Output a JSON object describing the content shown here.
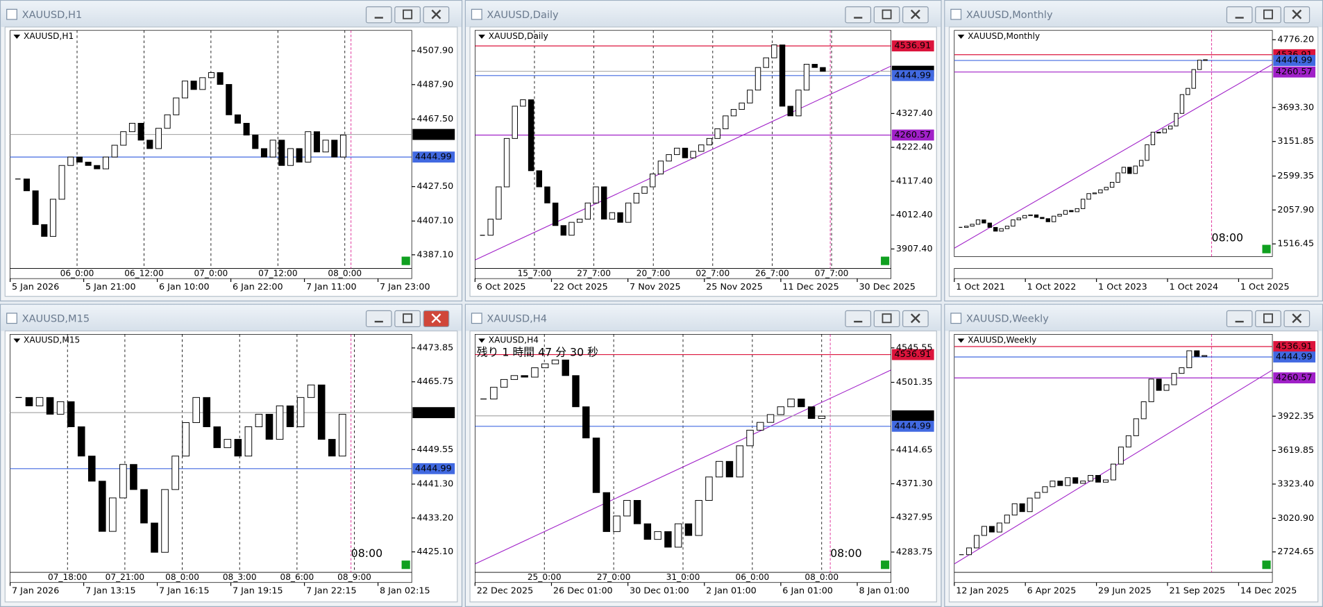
{
  "windows": [
    {
      "title": "XAUUSD,H1",
      "label": "XAUUSD,H1",
      "ylim": [
        4379,
        4520
      ],
      "yticks": [
        {
          "value": 4507.9,
          "label": "4507.90"
        },
        {
          "value": 4487.9,
          "label": "4487.90"
        },
        {
          "value": 4467.5,
          "label": "4467.50"
        },
        {
          "value": 4427.5,
          "label": "4427.50"
        },
        {
          "value": 4407.1,
          "label": "4407.10"
        },
        {
          "value": 4387.1,
          "label": "4387.10"
        }
      ],
      "levels": [
        {
          "value": 4458.38,
          "color": "#000000"
        },
        {
          "value": 4444.99,
          "color": "#4169e1"
        }
      ],
      "times": [
        "5 Jan 2026",
        "5 Jan 21:00",
        "6 Jan 10:00",
        "6 Jan 22:00",
        "7 Jan 11:00",
        "7 Jan 23:00"
      ],
      "separators": [
        "06_0:00",
        "06_12:00",
        "07_0:00",
        "07_12:00",
        "08_0:00"
      ],
      "closes": [
        4432,
        4425,
        4405,
        4398,
        4420,
        4440,
        4445,
        4442,
        4440,
        4438,
        4445,
        4452,
        4460,
        4465,
        4455,
        4450,
        4462,
        4470,
        4480,
        4490,
        4485,
        4492,
        4495,
        4488,
        4470,
        4465,
        4458,
        4450,
        4445,
        4455,
        4440,
        4450,
        4442,
        4460,
        4448,
        4455,
        4445,
        4458
      ]
    },
    {
      "title": "XAUUSD,Daily",
      "label": "XAUUSD,Daily",
      "ylim": [
        3847,
        4585
      ],
      "yticks": [
        {
          "value": 4327.4,
          "label": "4327.40"
        },
        {
          "value": 4222.4,
          "label": "4222.40"
        },
        {
          "value": 4117.4,
          "label": "4117.40"
        },
        {
          "value": 4012.4,
          "label": "4012.40"
        },
        {
          "value": 3907.4,
          "label": "3907.40"
        }
      ],
      "levels": [
        {
          "value": 4536.91,
          "color": "#dc143c"
        },
        {
          "value": 4458.38,
          "color": "#000000"
        },
        {
          "value": 4444.99,
          "color": "#4169e1"
        },
        {
          "value": 4260.57,
          "color": "#a020c8"
        }
      ],
      "times": [
        "6 Oct 2025",
        "22 Oct 2025",
        "7 Nov 2025",
        "25 Nov 2025",
        "11 Dec 2025",
        "30 Dec 2025"
      ],
      "separators": [
        "15_7:00",
        "27_7:00",
        "20_7:00",
        "02_7:00",
        "26_7:00",
        "07_7:00"
      ],
      "closes": [
        3950,
        4000,
        4100,
        4250,
        4350,
        4370,
        4150,
        4100,
        4050,
        3980,
        3950,
        3990,
        4000,
        4050,
        4100,
        4000,
        4020,
        3990,
        4050,
        4080,
        4100,
        4140,
        4180,
        4200,
        4220,
        4190,
        4210,
        4230,
        4250,
        4280,
        4320,
        4340,
        4360,
        4400,
        4470,
        4500,
        4540,
        4350,
        4320,
        4400,
        4480,
        4470,
        4458
      ]
    },
    {
      "title": "XAUUSD,Monthly",
      "label": "XAUUSD,Monthly",
      "ylim": [
        1313,
        4925
      ],
      "yticks": [
        {
          "value": 4776.2,
          "label": "4776.20"
        },
        {
          "value": 3693.3,
          "label": "3693.30"
        },
        3151.85,
        2599.35,
        {
          "value": 2057.9,
          "label": "2057.90"
        },
        1516.45
      ],
      "levels": [
        {
          "value": 4536.91,
          "color": "#dc143c"
        },
        {
          "value": 4444.99,
          "color": "#4169e1"
        },
        {
          "value": 4260.57,
          "color": "#a020c8"
        }
      ],
      "times": [
        "1 Oct 2021",
        "1 Oct 2022",
        "1 Oct 2023",
        "1 Oct 2024",
        "1 Oct 2025"
      ],
      "separators": [],
      "note": "08:00",
      "closes": [
        1780,
        1800,
        1830,
        1900,
        1850,
        1780,
        1720,
        1760,
        1800,
        1900,
        1930,
        1970,
        1980,
        1940,
        1920,
        1870,
        1960,
        1990,
        2050,
        2030,
        2080,
        2230,
        2320,
        2330,
        2380,
        2420,
        2500,
        2650,
        2740,
        2640,
        2760,
        2850,
        3100,
        3300,
        3290,
        3350,
        3400,
        3600,
        3900,
        4000,
        4300,
        4450,
        4458
      ]
    },
    {
      "title": "XAUUSD,M15",
      "label": "XAUUSD,M15",
      "ylim": [
        4420.2,
        4477.1
      ],
      "yticks": [
        4473.85,
        4465.75,
        4449.55,
        {
          "value": 4441.3,
          "label": "4441.30"
        },
        {
          "value": 4433.2,
          "label": "4433.20"
        },
        {
          "value": 4425.1,
          "label": "4425.10"
        }
      ],
      "levels": [
        {
          "value": 4458.38,
          "color": "#000000"
        },
        {
          "value": 4444.99,
          "color": "#4169e1"
        }
      ],
      "times": [
        "7 Jan 2026",
        "7 Jan 13:15",
        "7 Jan 16:15",
        "7 Jan 19:15",
        "7 Jan 22:15",
        "8 Jan 02:15"
      ],
      "separators": [
        "07_18:00",
        "07_21:00",
        "08_0:00",
        "08_3:00",
        "08_6:00",
        "08_9:00"
      ],
      "note": "08:00",
      "closes": [
        4462,
        4460,
        4462,
        4458,
        4461,
        4455,
        4448,
        4442,
        4430,
        4438,
        4446,
        4440,
        4432,
        4425,
        4440,
        4448,
        4456,
        4462,
        4455,
        4450,
        4452,
        4448,
        4455,
        4458,
        4452,
        4460,
        4455,
        4462,
        4465,
        4452,
        4448,
        4458
      ]
    },
    {
      "title": "XAUUSD,H4",
      "label": "XAUUSD,H4",
      "ylim": [
        4257.7,
        4562.9
      ],
      "yticks": [
        4545.55,
        4501.35,
        4414.65,
        {
          "value": 4371.3,
          "label": "4371.30"
        },
        4327.95,
        4283.75
      ],
      "levels": [
        {
          "value": 4536.91,
          "color": "#dc143c"
        },
        {
          "value": 4458.38,
          "color": "#000000"
        },
        {
          "value": 4444.99,
          "color": "#4169e1"
        }
      ],
      "times": [
        "22 Dec 2025",
        "26 Dec 01:00",
        "30 Dec 01:00",
        "2 Jan 01:00",
        "6 Jan 01:00",
        "8 Jan 01:00"
      ],
      "separators": [
        "25_0:00",
        "27_0:00",
        "31_0:00",
        "06_0:00",
        "08_0:00"
      ],
      "countdown": "残り 1 時間 47 分 30 秒",
      "note": "08:00",
      "closes": [
        4480,
        4495,
        4505,
        4510,
        4508,
        4520,
        4525,
        4530,
        4510,
        4470,
        4430,
        4360,
        4310,
        4330,
        4350,
        4320,
        4300,
        4310,
        4290,
        4320,
        4305,
        4350,
        4380,
        4400,
        4380,
        4420,
        4440,
        4450,
        4460,
        4470,
        4480,
        4470,
        4455,
        4458
      ]
    },
    {
      "title": "XAUUSD,Weekly",
      "label": "XAUUSD,Weekly",
      "ylim": [
        2544,
        4645
      ],
      "yticks": [
        3922.35,
        3619.85,
        {
          "value": 3323.4,
          "label": "3323.40"
        },
        {
          "value": 3020.9,
          "label": "3020.90"
        },
        2724.65
      ],
      "levels": [
        {
          "value": 4536.91,
          "color": "#dc143c"
        },
        {
          "value": 4444.99,
          "color": "#4169e1"
        },
        {
          "value": 4260.57,
          "color": "#a020c8"
        }
      ],
      "times": [
        "12 Jan 2025",
        "6 Apr 2025",
        "29 Jun 2025",
        "21 Sep 2025",
        "14 Dec 2025"
      ],
      "separators": [],
      "closes": [
        2700,
        2760,
        2870,
        2950,
        2900,
        2980,
        3050,
        3150,
        3080,
        3200,
        3250,
        3300,
        3350,
        3310,
        3380,
        3330,
        3350,
        3400,
        3340,
        3360,
        3500,
        3650,
        3750,
        3900,
        4050,
        4250,
        4150,
        4200,
        4300,
        4350,
        4500,
        4450,
        4458
      ]
    }
  ]
}
